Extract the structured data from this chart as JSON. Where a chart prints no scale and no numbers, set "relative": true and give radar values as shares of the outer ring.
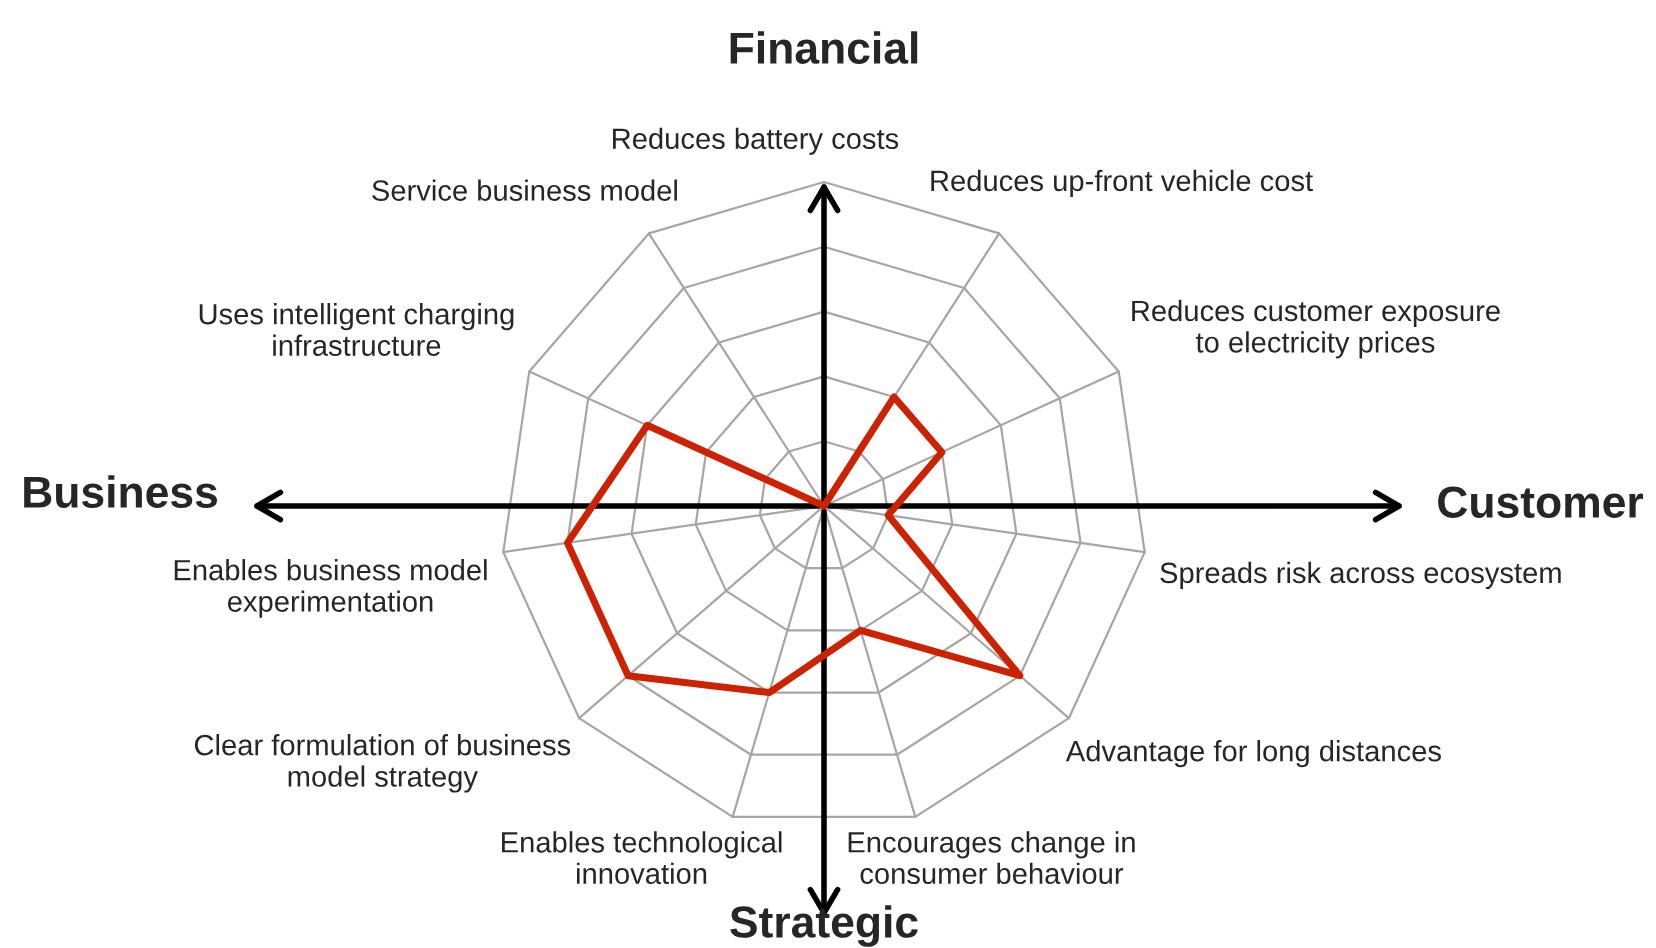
{
  "chart_data": {
    "type": "radar",
    "relative": true,
    "grid": true,
    "legend": false,
    "marker": "none",
    "line_style": "solid",
    "categories": [
      "Reduces battery costs",
      "Reduces up-front vehicle cost",
      "Reduces customer exposure\nto electricity prices",
      "Spreads risk across ecosystem",
      "Advantage for long distances",
      "Encourages change in\nconsumer behaviour",
      "Enables technological\ninnovation",
      "Clear formulation of business\nmodel strategy",
      "Enables business model\nexperimentation",
      "Uses intelligent charging\ninfrastructure",
      "Service business model"
    ],
    "series": [
      {
        "color": "#cc2200",
        "values": [
          0,
          0.4,
          0.4,
          0.2,
          0.8,
          0.4,
          0.6,
          0.8,
          0.8,
          0.6,
          0
        ]
      }
    ],
    "annotations": [
      "Financial",
      "Customer",
      "Strategic",
      "Business"
    ]
  }
}
